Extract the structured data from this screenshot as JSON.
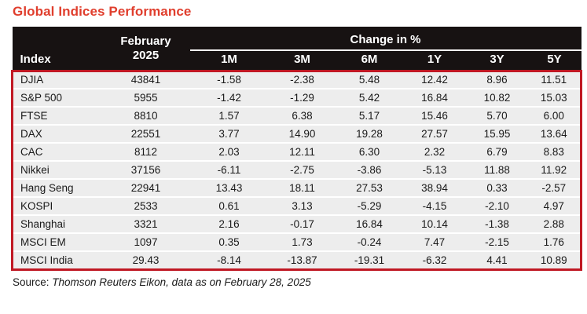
{
  "title": "Global Indices Performance",
  "table": {
    "header": {
      "index_label": "Index",
      "period_line1": "February",
      "period_line2": "2025",
      "change_group_label": "Change in %",
      "change_columns": [
        "1M",
        "3M",
        "6M",
        "1Y",
        "3Y",
        "5Y"
      ]
    },
    "rows": [
      {
        "index": "DJIA",
        "value": "43841",
        "changes": [
          "-1.58",
          "-2.38",
          "5.48",
          "12.42",
          "8.96",
          "11.51"
        ]
      },
      {
        "index": "S&P 500",
        "value": "5955",
        "changes": [
          "-1.42",
          "-1.29",
          "5.42",
          "16.84",
          "10.82",
          "15.03"
        ]
      },
      {
        "index": "FTSE",
        "value": "8810",
        "changes": [
          "1.57",
          "6.38",
          "5.17",
          "15.46",
          "5.70",
          "6.00"
        ]
      },
      {
        "index": "DAX",
        "value": "22551",
        "changes": [
          "3.77",
          "14.90",
          "19.28",
          "27.57",
          "15.95",
          "13.64"
        ]
      },
      {
        "index": "CAC",
        "value": "8112",
        "changes": [
          "2.03",
          "12.11",
          "6.30",
          "2.32",
          "6.79",
          "8.83"
        ]
      },
      {
        "index": "Nikkei",
        "value": "37156",
        "changes": [
          "-6.11",
          "-2.75",
          "-3.86",
          "-5.13",
          "11.88",
          "11.92"
        ]
      },
      {
        "index": "Hang Seng",
        "value": "22941",
        "changes": [
          "13.43",
          "18.11",
          "27.53",
          "38.94",
          "0.33",
          "-2.57"
        ]
      },
      {
        "index": "KOSPI",
        "value": "2533",
        "changes": [
          "0.61",
          "3.13",
          "-5.29",
          "-4.15",
          "-2.10",
          "4.97"
        ]
      },
      {
        "index": "Shanghai",
        "value": "3321",
        "changes": [
          "2.16",
          "-0.17",
          "16.84",
          "10.14",
          "-1.38",
          "2.88"
        ]
      },
      {
        "index": "MSCI EM",
        "value": "1097",
        "changes": [
          "0.35",
          "1.73",
          "-0.24",
          "7.47",
          "-2.15",
          "1.76"
        ]
      },
      {
        "index": "MSCI India",
        "value": "29.43",
        "changes": [
          "-8.14",
          "-13.87",
          "-19.31",
          "-6.32",
          "4.41",
          "10.89"
        ]
      }
    ]
  },
  "source": {
    "prefix": "Source: ",
    "text": "Thomson Reuters Eikon, data as on February 28, 2025"
  },
  "colors": {
    "title": "#E03E2D",
    "header_bg": "#171212",
    "border_red": "#C01823",
    "row_bg": "#EDEDED",
    "text": "#1A1A1A"
  }
}
